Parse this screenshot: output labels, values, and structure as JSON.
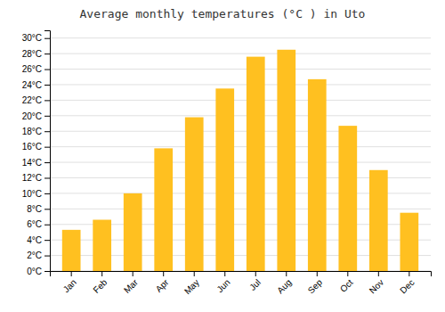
{
  "chart_data": {
    "type": "bar",
    "title": "Average monthly temperatures (°C ) in Uto",
    "categories": [
      "Jan",
      "Feb",
      "Mar",
      "Apr",
      "May",
      "Jun",
      "Jul",
      "Aug",
      "Sep",
      "Oct",
      "Nov",
      "Dec"
    ],
    "values": [
      5.3,
      6.6,
      10.0,
      15.8,
      19.8,
      23.5,
      27.6,
      28.5,
      24.7,
      18.7,
      13.0,
      7.5
    ],
    "color": "#FFC020",
    "ylim": [
      0,
      31
    ],
    "yticks": [
      {
        "value": 0,
        "label": "0°C"
      },
      {
        "value": 2,
        "label": "2°C"
      },
      {
        "value": 4,
        "label": "4°C"
      },
      {
        "value": 6,
        "label": "6°C"
      },
      {
        "value": 8,
        "label": "8°C"
      },
      {
        "value": 10,
        "label": "10°C"
      },
      {
        "value": 12,
        "label": "12°C"
      },
      {
        "value": 14,
        "label": "14°C"
      },
      {
        "value": 16,
        "label": "16°C"
      },
      {
        "value": 18,
        "label": "18°C"
      },
      {
        "value": 20,
        "label": "20°C"
      },
      {
        "value": 22,
        "label": "22°C"
      },
      {
        "value": 24,
        "label": "24°C"
      },
      {
        "value": 26,
        "label": "26°C"
      },
      {
        "value": 28,
        "label": "28°C"
      },
      {
        "value": 30,
        "label": "30°C"
      }
    ],
    "grid": true
  }
}
